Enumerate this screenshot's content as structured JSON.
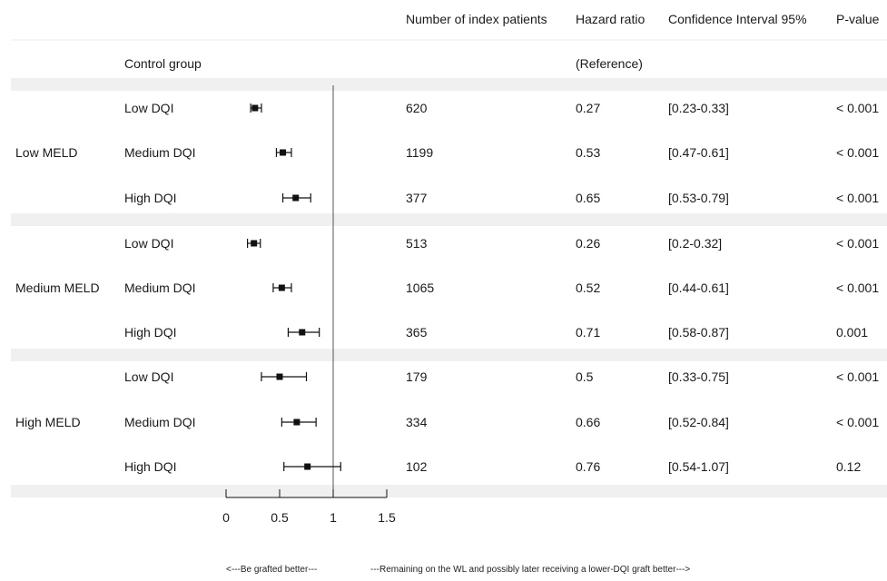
{
  "chart_data": {
    "type": "forest",
    "columns": [
      "Number of index patients",
      "Hazard ratio",
      "Confidence Interval 95%",
      "P-value"
    ],
    "reference_row": {
      "label": "Control group",
      "hazard_ratio": "(Reference)"
    },
    "groups": [
      {
        "name": "Low MELD",
        "rows": [
          {
            "label": "Low DQI",
            "n": "620",
            "hr": 0.27,
            "lo": 0.23,
            "hi": 0.33,
            "hr_text": "0.27",
            "ci_text": "[0.23-0.33]",
            "p": "< 0.001"
          },
          {
            "label": "Medium DQI",
            "n": "1199",
            "hr": 0.53,
            "lo": 0.47,
            "hi": 0.61,
            "hr_text": "0.53",
            "ci_text": "[0.47-0.61]",
            "p": "< 0.001"
          },
          {
            "label": "High DQI",
            "n": "377",
            "hr": 0.65,
            "lo": 0.53,
            "hi": 0.79,
            "hr_text": "0.65",
            "ci_text": "[0.53-0.79]",
            "p": "< 0.001"
          }
        ]
      },
      {
        "name": "Medium MELD",
        "rows": [
          {
            "label": "Low DQI",
            "n": "513",
            "hr": 0.26,
            "lo": 0.2,
            "hi": 0.32,
            "hr_text": "0.26",
            "ci_text": "[0.2-0.32]",
            "p": "< 0.001"
          },
          {
            "label": "Medium DQI",
            "n": "1065",
            "hr": 0.52,
            "lo": 0.44,
            "hi": 0.61,
            "hr_text": "0.52",
            "ci_text": "[0.44-0.61]",
            "p": "< 0.001"
          },
          {
            "label": "High DQI",
            "n": "365",
            "hr": 0.71,
            "lo": 0.58,
            "hi": 0.87,
            "hr_text": "0.71",
            "ci_text": "[0.58-0.87]",
            "p": "0.001"
          }
        ]
      },
      {
        "name": "High MELD",
        "rows": [
          {
            "label": "Low DQI",
            "n": "179",
            "hr": 0.5,
            "lo": 0.33,
            "hi": 0.75,
            "hr_text": "0.5",
            "ci_text": "[0.33-0.75]",
            "p": "< 0.001"
          },
          {
            "label": "Medium DQI",
            "n": "334",
            "hr": 0.66,
            "lo": 0.52,
            "hi": 0.84,
            "hr_text": "0.66",
            "ci_text": "[0.52-0.84]",
            "p": "< 0.001"
          },
          {
            "label": "High DQI",
            "n": "102",
            "hr": 0.76,
            "lo": 0.54,
            "hi": 1.07,
            "hr_text": "0.76",
            "ci_text": "[0.54-1.07]",
            "p": "0.12"
          }
        ]
      }
    ],
    "x_axis": {
      "ticks": [
        "0",
        "0.5",
        "1",
        "1.5"
      ],
      "range": [
        0,
        1.5
      ],
      "reference_line": 1
    },
    "footer_left": "<---Be grafted better---",
    "footer_right": "---Remaining on the WL and possibly later receiving a lower-DQI graft better--->",
    "colors": {
      "band": "#f0f0f0",
      "ink": "#111111",
      "refline": "#555555",
      "rule": "#eeeeee"
    }
  }
}
